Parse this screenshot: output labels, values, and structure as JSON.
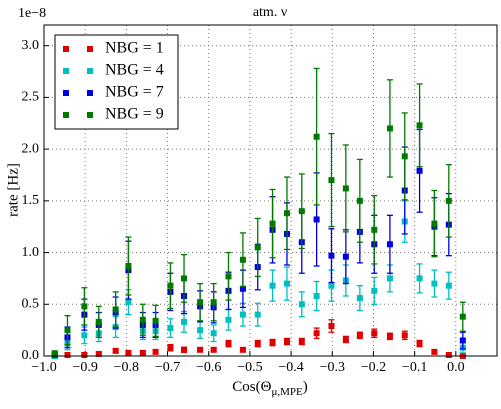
{
  "chart_data": {
    "type": "errorbar-scatter",
    "title": "atm. ν",
    "offset_text": "1e−8",
    "xlabel": {
      "prefix": "Cos(Θ",
      "subscript": "μ,MPE",
      "suffix": ")"
    },
    "ylabel": "rate [Hz]",
    "xlim": [
      -1.0,
      0.1
    ],
    "ylim": [
      0,
      3.2
    ],
    "xticks": [
      {
        "value": -1.0,
        "label": "−1.0"
      },
      {
        "value": -0.9,
        "label": "−0.9"
      },
      {
        "value": -0.8,
        "label": "−0.8"
      },
      {
        "value": -0.7,
        "label": "−0.7"
      },
      {
        "value": -0.6,
        "label": "−0.6"
      },
      {
        "value": -0.5,
        "label": "−0.5"
      },
      {
        "value": -0.4,
        "label": "−0.4"
      },
      {
        "value": -0.3,
        "label": "−0.3"
      },
      {
        "value": -0.2,
        "label": "−0.2"
      },
      {
        "value": -0.1,
        "label": "−0.1"
      },
      {
        "value": 0.0,
        "label": "0.0"
      }
    ],
    "yticks": [
      {
        "value": 0,
        "label": "0.0"
      },
      0.5,
      {
        "value": 1,
        "label": "1.0"
      },
      1.5,
      {
        "value": 2,
        "label": "2.0"
      },
      2.5,
      {
        "value": 3,
        "label": "3.0"
      }
    ],
    "grid": true,
    "legend": "upper left",
    "x": [
      -0.974,
      -0.943,
      -0.902,
      -0.867,
      -0.826,
      -0.795,
      -0.76,
      -0.729,
      -0.693,
      -0.66,
      -0.621,
      -0.588,
      -0.552,
      -0.517,
      -0.481,
      -0.445,
      -0.41,
      -0.374,
      -0.338,
      -0.302,
      -0.267,
      -0.233,
      -0.198,
      -0.16,
      -0.124,
      -0.088,
      -0.052,
      -0.017,
      0.017
    ],
    "series": [
      {
        "name": "NBG = 1",
        "color": "#e00000",
        "values": [
          0.0,
          0.01,
          0.01,
          0.02,
          0.05,
          0.03,
          0.03,
          0.04,
          0.08,
          0.06,
          0.06,
          0.06,
          0.12,
          0.06,
          0.12,
          0.13,
          0.14,
          0.14,
          0.22,
          0.29,
          0.16,
          0.2,
          0.22,
          0.19,
          0.2,
          0.12,
          0.04,
          0.01,
          0.0
        ],
        "errors": [
          0.005,
          0.01,
          0.01,
          0.015,
          0.02,
          0.02,
          0.02,
          0.02,
          0.03,
          0.025,
          0.02,
          0.02,
          0.03,
          0.02,
          0.03,
          0.03,
          0.03,
          0.03,
          0.05,
          0.06,
          0.03,
          0.03,
          0.04,
          0.03,
          0.04,
          0.03,
          0.02,
          0.01,
          0.005
        ]
      },
      {
        "name": "NBG = 4",
        "color": "#00bfbf",
        "values": [
          0.0,
          0.12,
          0.2,
          0.22,
          0.28,
          0.52,
          0.24,
          0.24,
          0.27,
          0.33,
          0.25,
          0.22,
          0.35,
          0.4,
          0.4,
          0.68,
          0.7,
          0.5,
          0.58,
          0.68,
          0.73,
          0.56,
          0.63,
          0.75,
          1.3,
          0.75,
          0.7,
          0.68,
          0.08
        ],
        "errors": [
          0.01,
          0.06,
          0.08,
          0.08,
          0.1,
          0.12,
          0.08,
          0.08,
          0.09,
          0.1,
          0.08,
          0.08,
          0.1,
          0.11,
          0.11,
          0.15,
          0.16,
          0.12,
          0.14,
          0.15,
          0.15,
          0.12,
          0.13,
          0.13,
          0.2,
          0.14,
          0.13,
          0.13,
          0.05
        ]
      },
      {
        "name": "NBG = 7",
        "color": "#0000e0",
        "values": [
          0.01,
          0.18,
          0.4,
          0.3,
          0.42,
          0.83,
          0.3,
          0.3,
          0.62,
          0.58,
          0.48,
          0.47,
          0.63,
          0.65,
          0.86,
          1.22,
          1.18,
          1.1,
          1.32,
          0.97,
          0.96,
          1.2,
          1.08,
          1.08,
          1.6,
          1.79,
          1.25,
          1.27,
          0.15
        ],
        "errors": [
          0.02,
          0.1,
          0.15,
          0.12,
          0.15,
          0.28,
          0.12,
          0.12,
          0.18,
          0.17,
          0.15,
          0.15,
          0.18,
          0.18,
          0.22,
          0.32,
          0.3,
          0.3,
          0.45,
          0.26,
          0.26,
          0.3,
          0.28,
          0.28,
          0.42,
          0.4,
          0.28,
          0.3,
          0.08
        ]
      },
      {
        "name": "NBG = 9",
        "color": "#007a00",
        "values": [
          0.02,
          0.25,
          0.48,
          0.33,
          0.45,
          0.87,
          0.35,
          0.34,
          0.68,
          0.75,
          0.52,
          0.52,
          0.77,
          0.93,
          1.05,
          1.28,
          1.38,
          1.4,
          2.12,
          1.7,
          1.62,
          1.5,
          1.22,
          2.2,
          1.93,
          2.23,
          1.28,
          1.5,
          0.38
        ],
        "errors": [
          0.03,
          0.14,
          0.18,
          0.15,
          0.17,
          0.28,
          0.15,
          0.15,
          0.22,
          0.23,
          0.18,
          0.18,
          0.23,
          0.26,
          0.28,
          0.33,
          0.35,
          0.36,
          0.66,
          0.45,
          0.42,
          0.4,
          0.33,
          0.47,
          0.42,
          0.4,
          0.32,
          0.35,
          0.14
        ]
      }
    ]
  }
}
